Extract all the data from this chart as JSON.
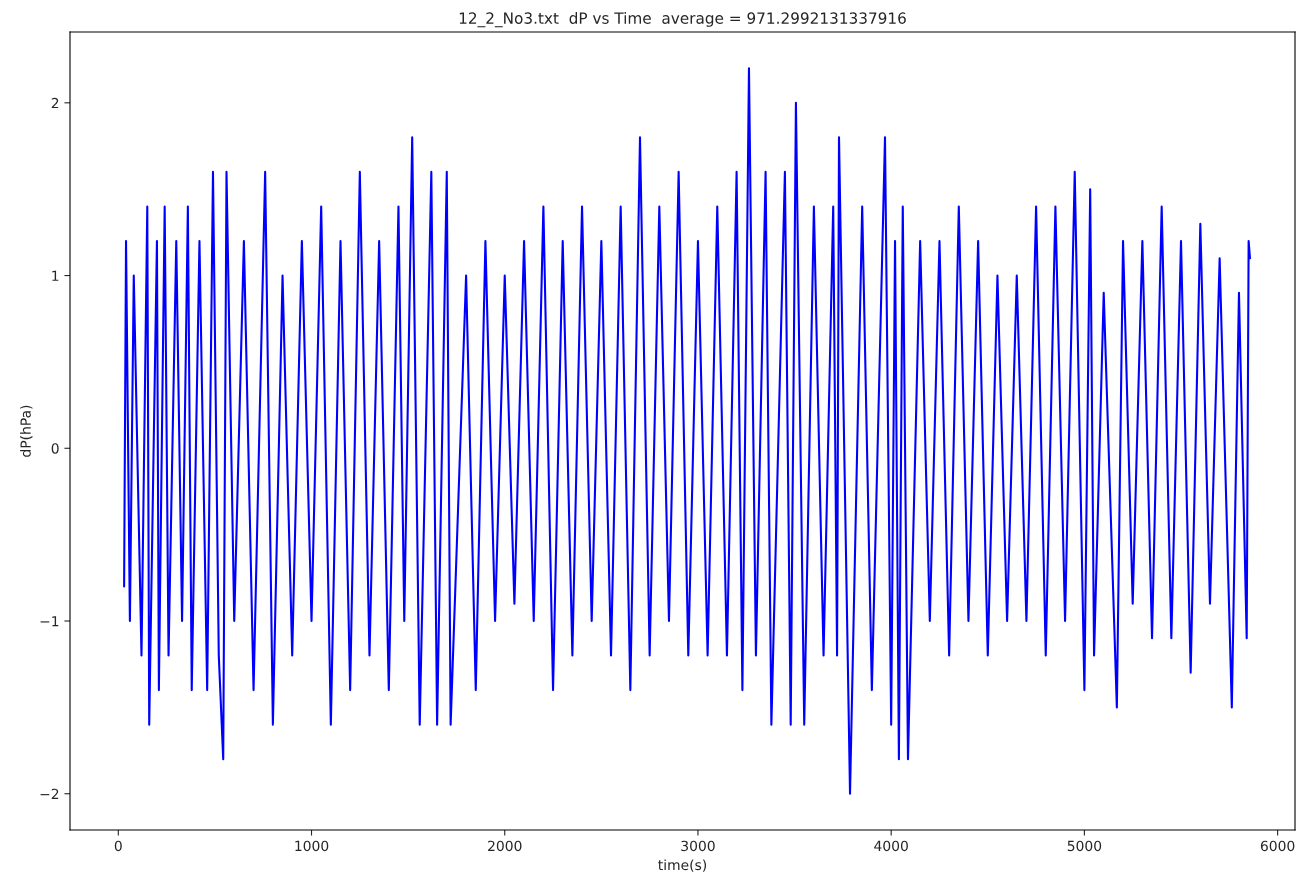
{
  "chart_data": {
    "type": "line",
    "title": "12_2_No3.txt  dP vs Time  average = 971.2992131337916",
    "xlabel": "time(s)",
    "ylabel": "dP(hPa)",
    "x": [
      30,
      40,
      60,
      80,
      120,
      150,
      160,
      200,
      210,
      240,
      260,
      300,
      330,
      360,
      380,
      420,
      460,
      490,
      520,
      543,
      560,
      600,
      650,
      700,
      760,
      800,
      850,
      900,
      950,
      1000,
      1050,
      1100,
      1150,
      1200,
      1250,
      1300,
      1350,
      1400,
      1450,
      1480,
      1521,
      1560,
      1620,
      1650,
      1700,
      1720,
      1800,
      1850,
      1900,
      1950,
      2000,
      2050,
      2100,
      2150,
      2200,
      2250,
      2300,
      2350,
      2400,
      2450,
      2500,
      2550,
      2600,
      2650,
      2700,
      2750,
      2800,
      2850,
      2900,
      2950,
      3000,
      3050,
      3100,
      3150,
      3200,
      3230,
      3264,
      3300,
      3350,
      3380,
      3450,
      3480,
      3507,
      3550,
      3600,
      3650,
      3700,
      3720,
      3730,
      3787,
      3850,
      3900,
      3968,
      4000,
      4020,
      4040,
      4060,
      4087,
      4150,
      4200,
      4250,
      4300,
      4350,
      4400,
      4450,
      4500,
      4550,
      4600,
      4650,
      4700,
      4750,
      4800,
      4850,
      4900,
      4950,
      5000,
      5030,
      5050,
      5100,
      5168,
      5200,
      5250,
      5300,
      5350,
      5400,
      5450,
      5500,
      5550,
      5600,
      5650,
      5700,
      5763,
      5800,
      5840,
      5850,
      5857
    ],
    "series": [
      {
        "color": "#0000ff",
        "values": [
          -0.8,
          1.2,
          -1.0,
          1.0,
          -1.2,
          1.4,
          -1.6,
          1.2,
          -1.4,
          1.4,
          -1.2,
          1.2,
          -1.0,
          1.4,
          -1.4,
          1.2,
          -1.4,
          1.6,
          -1.2,
          -1.8,
          1.6,
          -1.0,
          1.2,
          -1.4,
          1.6,
          -1.6,
          1.0,
          -1.2,
          1.2,
          -1.0,
          1.4,
          -1.6,
          1.2,
          -1.4,
          1.6,
          -1.2,
          1.2,
          -1.4,
          1.4,
          -1.0,
          1.8,
          -1.6,
          1.6,
          -1.6,
          1.6,
          -1.6,
          1.0,
          -1.4,
          1.2,
          -1.0,
          1.0,
          -0.9,
          1.2,
          -1.0,
          1.4,
          -1.4,
          1.2,
          -1.2,
          1.4,
          -1.0,
          1.2,
          -1.2,
          1.4,
          -1.4,
          1.8,
          -1.2,
          1.4,
          -1.0,
          1.6,
          -1.2,
          1.2,
          -1.2,
          1.4,
          -1.2,
          1.6,
          -1.4,
          2.2,
          -1.2,
          1.6,
          -1.6,
          1.6,
          -1.6,
          2.0,
          -1.6,
          1.4,
          -1.2,
          1.4,
          -1.2,
          1.8,
          -2.0,
          1.4,
          -1.4,
          1.8,
          -1.6,
          1.2,
          -1.8,
          1.4,
          -1.8,
          1.2,
          -1.0,
          1.2,
          -1.2,
          1.4,
          -1.0,
          1.2,
          -1.2,
          1.0,
          -1.0,
          1.0,
          -1.0,
          1.4,
          -1.2,
          1.4,
          -1.0,
          1.6,
          -1.4,
          1.5,
          -1.2,
          0.9,
          -1.5,
          1.2,
          -0.9,
          1.2,
          -1.1,
          1.4,
          -1.1,
          1.2,
          -1.3,
          1.3,
          -0.9,
          1.1,
          -1.5,
          0.9,
          -1.1,
          1.2,
          1.1
        ]
      }
    ],
    "xlim": [
      -250,
      6090
    ],
    "ylim": [
      -2.21,
      2.41
    ],
    "xticks": [
      0,
      1000,
      2000,
      3000,
      4000,
      5000,
      6000
    ],
    "yticks": [
      {
        "value": -2,
        "label": "−2"
      },
      {
        "value": -1,
        "label": "−1"
      },
      0,
      1,
      2
    ],
    "grid": false,
    "legend": false,
    "marker": "none",
    "line_style": "solid"
  }
}
